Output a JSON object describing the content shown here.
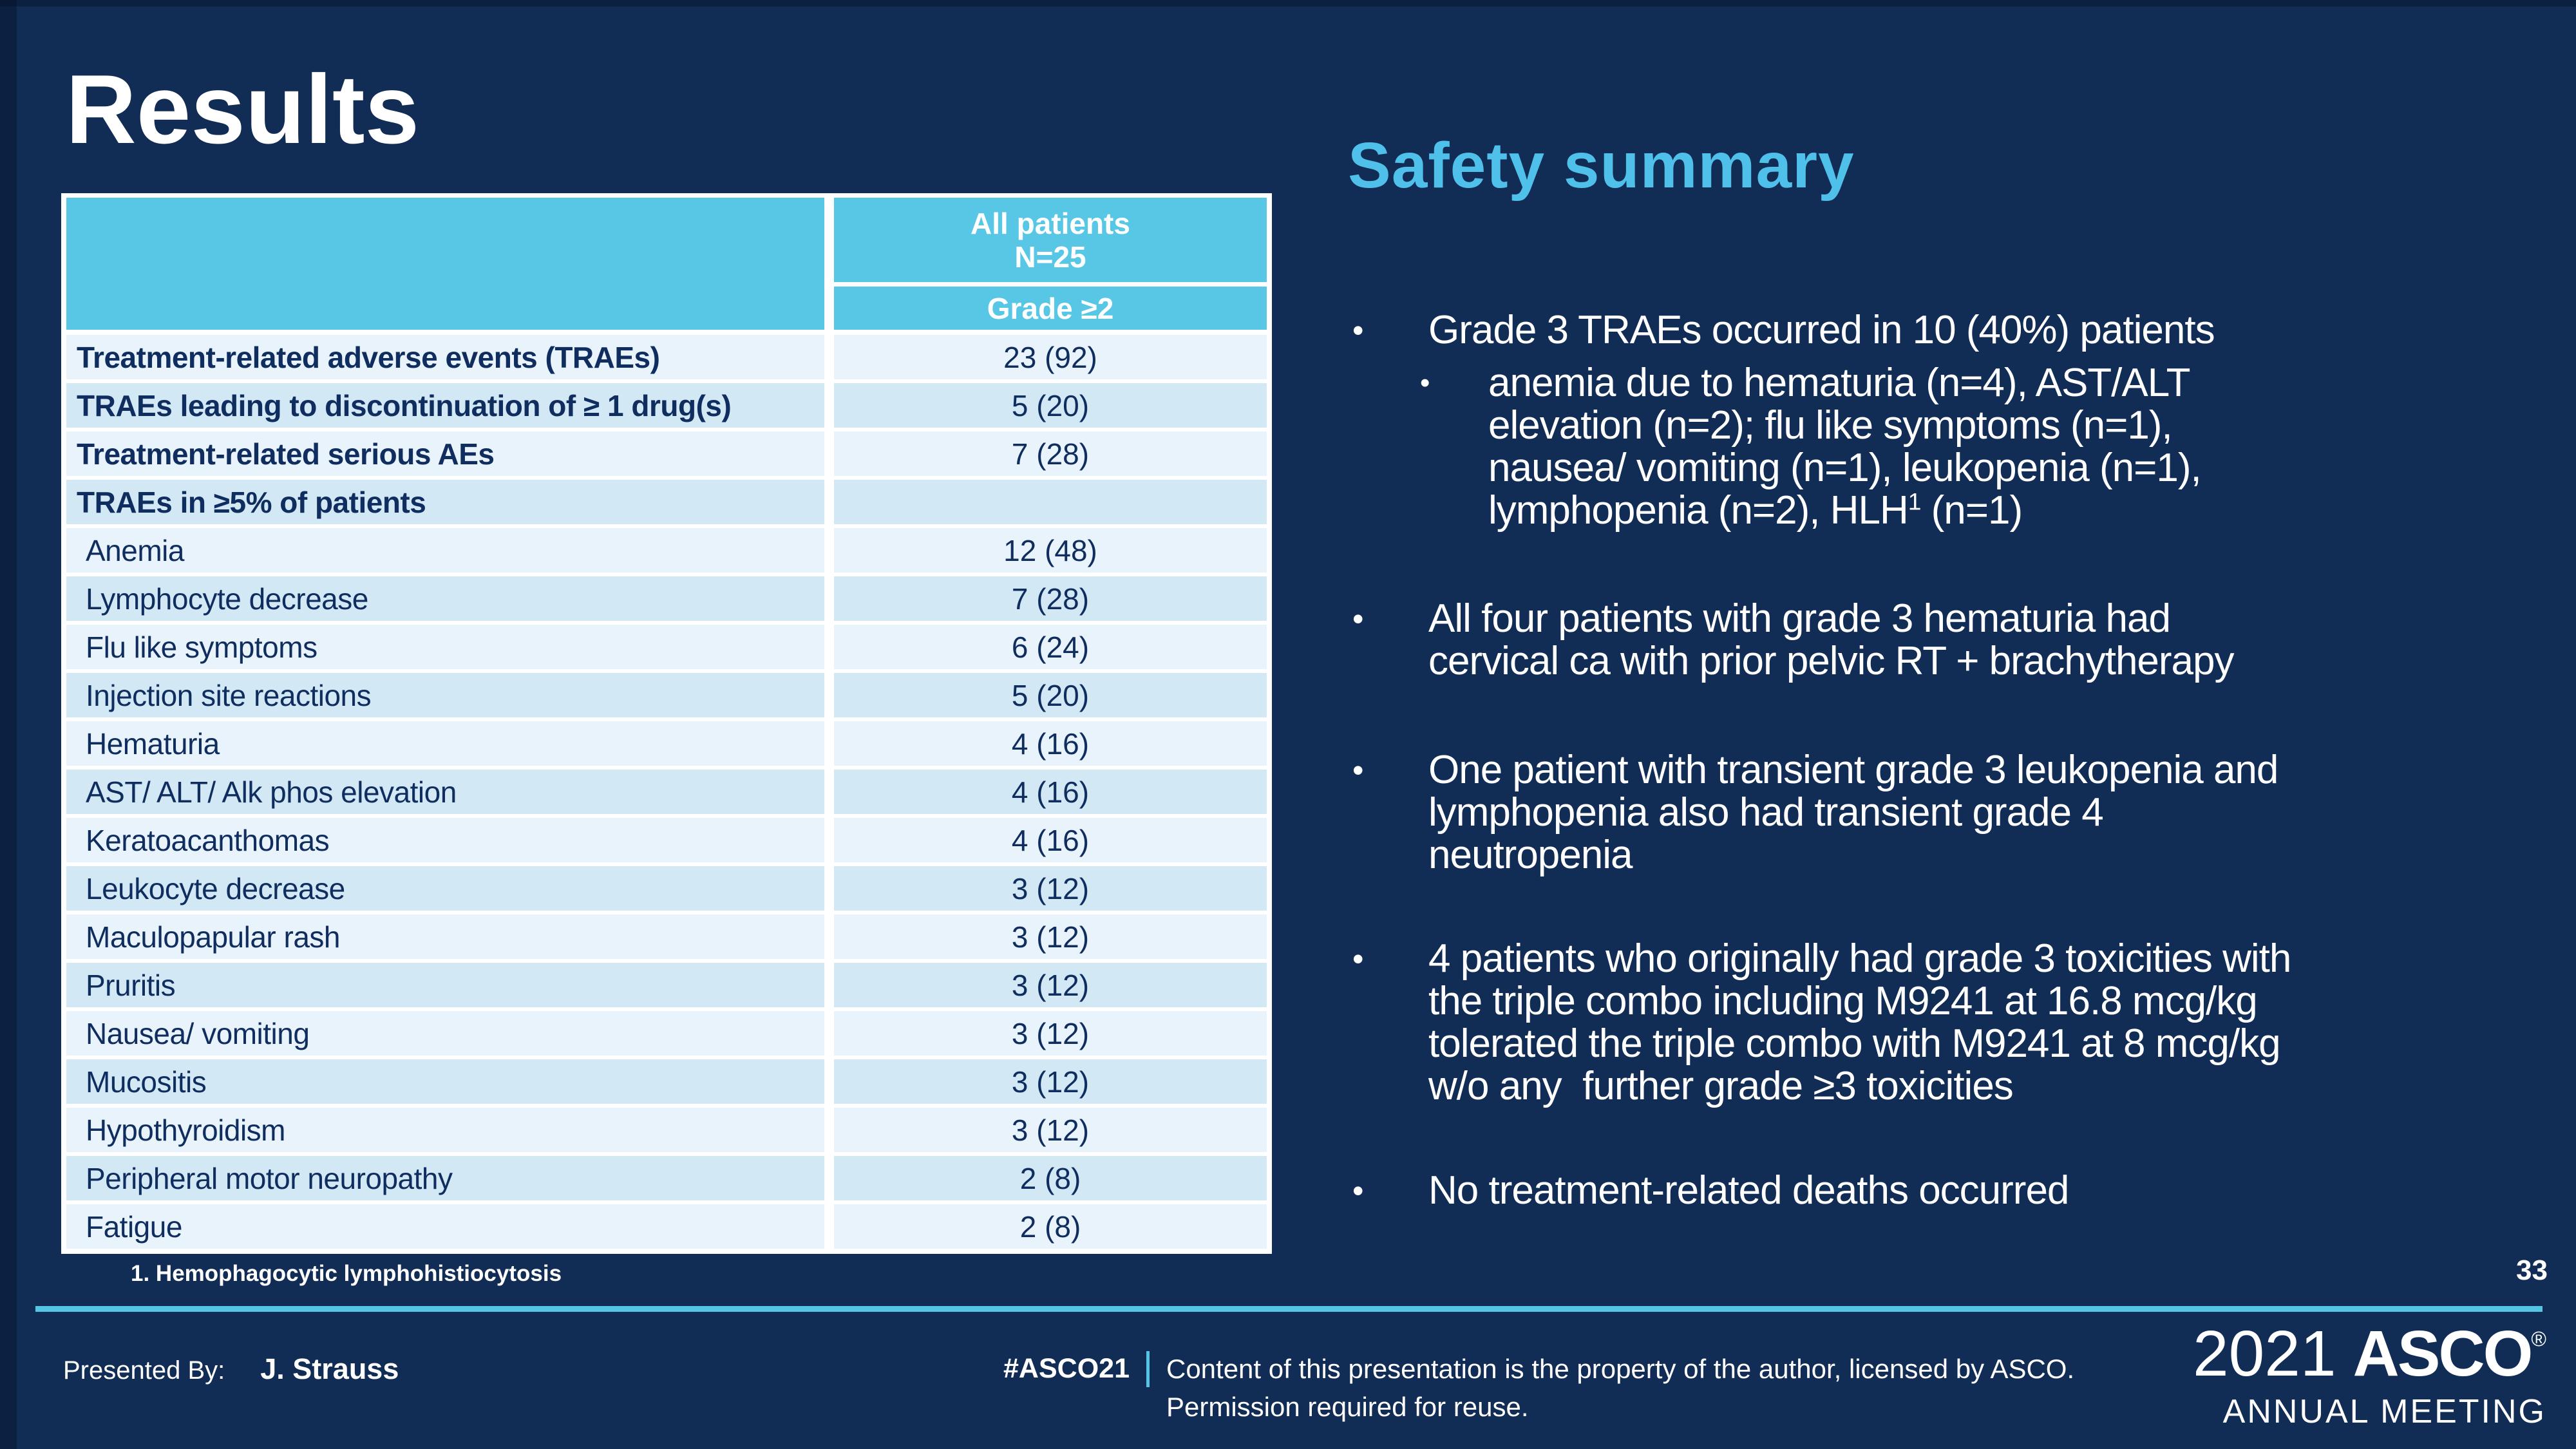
{
  "slide": {
    "title": "Results",
    "page_number": "33",
    "footnote": "1. Hemophagocytic lymphohistiocytosis"
  },
  "colors": {
    "background_navy": "#112C55",
    "accent_cyan": "#57C7E5",
    "safety_title_cyan": "#4FC0EA",
    "divider_cyan": "#54C5E2",
    "table_row_light": "#E9F3FB",
    "table_row_dark": "#D3E8F5",
    "table_text_navy": "#0F2D5E"
  },
  "table": {
    "header": {
      "col2_title_line1": "All patients",
      "col2_title_line2": "N=25",
      "col2_subheader": "Grade ≥2"
    },
    "rows": [
      {
        "label": "Treatment-related adverse events (TRAEs)",
        "value": "23 (92)",
        "bold": true,
        "indent": false
      },
      {
        "label": "TRAEs leading to discontinuation of ≥ 1 drug(s)",
        "value": "5 (20)",
        "bold": true,
        "indent": false
      },
      {
        "label": "Treatment-related serious AEs",
        "value": "7 (28)",
        "bold": true,
        "indent": false
      },
      {
        "label": "TRAEs in ≥5% of patients",
        "value": "",
        "bold": true,
        "indent": false
      },
      {
        "label": "Anemia",
        "value": "12 (48)",
        "bold": false,
        "indent": true
      },
      {
        "label": "Lymphocyte decrease",
        "value": "7 (28)",
        "bold": false,
        "indent": true
      },
      {
        "label": "Flu like symptoms",
        "value": "6 (24)",
        "bold": false,
        "indent": true
      },
      {
        "label": "Injection site reactions",
        "value": "5 (20)",
        "bold": false,
        "indent": true
      },
      {
        "label": "Hematuria",
        "value": "4 (16)",
        "bold": false,
        "indent": true
      },
      {
        "label": "AST/ ALT/ Alk phos elevation",
        "value": "4 (16)",
        "bold": false,
        "indent": true
      },
      {
        "label": "Keratoacanthomas",
        "value": "4 (16)",
        "bold": false,
        "indent": true
      },
      {
        "label": "Leukocyte decrease",
        "value": "3 (12)",
        "bold": false,
        "indent": true
      },
      {
        "label": "Maculopapular rash",
        "value": "3 (12)",
        "bold": false,
        "indent": true
      },
      {
        "label": "Pruritis",
        "value": "3 (12)",
        "bold": false,
        "indent": true
      },
      {
        "label": "Nausea/ vomiting",
        "value": "3 (12)",
        "bold": false,
        "indent": true
      },
      {
        "label": "Mucositis",
        "value": "3 (12)",
        "bold": false,
        "indent": true
      },
      {
        "label": "Hypothyroidism",
        "value": "3 (12)",
        "bold": false,
        "indent": true
      },
      {
        "label": "Peripheral motor neuropathy",
        "value": "2 (8)",
        "bold": false,
        "indent": true
      },
      {
        "label": "Fatigue",
        "value": "2 (8)",
        "bold": false,
        "indent": true
      }
    ]
  },
  "safety": {
    "title": "Safety summary",
    "bullets": [
      {
        "level": 1,
        "lines": [
          [
            {
              "t": "Grade 3 TRAEs occurred in 10 (40%) patients"
            }
          ]
        ]
      },
      {
        "level": 2,
        "lines": [
          [
            {
              "t": "anemia due to hematuria (n=4), AST/ALT"
            }
          ],
          [
            {
              "t": "elevation (n=2); flu like symptoms (n=1),"
            }
          ],
          [
            {
              "t": "nausea/ vomiting (n=1), leukopenia (n=1),"
            }
          ],
          [
            {
              "t": "lymphopenia (n=2), HLH"
            },
            {
              "t": "1",
              "sup": true
            },
            {
              "t": " (n=1)"
            }
          ]
        ]
      },
      {
        "level": 1,
        "lines": [
          [
            {
              "t": "All four patients with grade 3 hematuria had"
            }
          ],
          [
            {
              "t": "cervical ca with prior pelvic RT + brachytherapy"
            }
          ]
        ]
      },
      {
        "level": 1,
        "lines": [
          [
            {
              "t": "One patient with transient grade 3 leukopenia and"
            }
          ],
          [
            {
              "t": "lymphopenia also had transient grade 4"
            }
          ],
          [
            {
              "t": "neutropenia"
            }
          ]
        ]
      },
      {
        "level": 1,
        "lines": [
          [
            {
              "t": "4 patients who originally had grade 3 toxicities with"
            }
          ],
          [
            {
              "t": "the triple combo including M9241 at 16.8 mcg/kg"
            }
          ],
          [
            {
              "t": "tolerated the triple combo with M9241 at 8 mcg/kg"
            }
          ],
          [
            {
              "t": "w/o any  further grade ≥3 toxicities"
            }
          ]
        ]
      },
      {
        "level": 1,
        "lines": [
          [
            {
              "t": "No treatment-related deaths occurred"
            }
          ]
        ]
      }
    ]
  },
  "footer": {
    "presented_by_label": "Presented By:",
    "presenter": "J. Strauss",
    "hashtag": "#ASCO21",
    "disclaimer_line1": "Content of this presentation is the property of the author, licensed by ASCO.",
    "disclaimer_line2": "Permission required for reuse.",
    "logo_year": "2021",
    "logo_name": "ASCO",
    "logo_reg": "®",
    "logo_subtitle": "ANNUAL MEETING"
  }
}
